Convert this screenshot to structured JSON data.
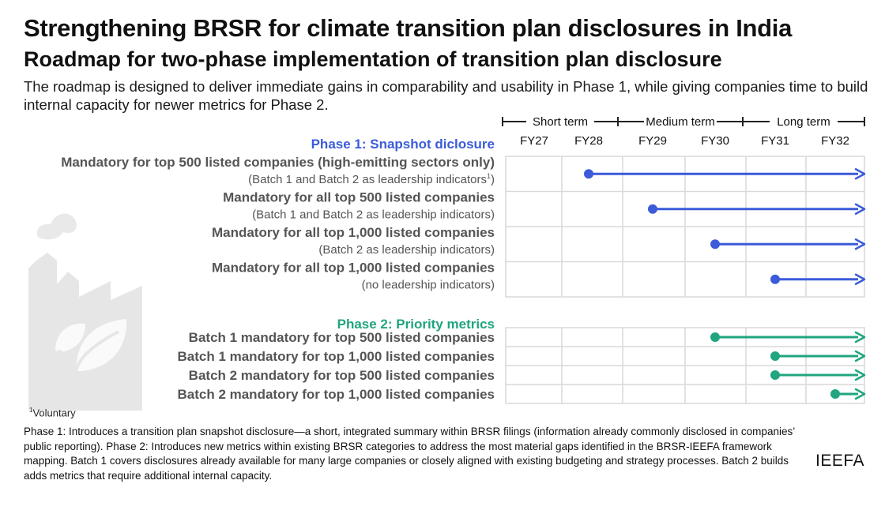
{
  "title": "Strengthening BRSR for climate transition plan disclosures in India",
  "subtitle": "Roadmap for two-phase implementation of transition plan disclosure",
  "intro": "The roadmap is designed to deliver immediate gains in comparability and usability in Phase 1, while giving companies time to build internal capacity for newer metrics for Phase 2.",
  "footnote": {
    "marker": "1",
    "text": "Voluntary"
  },
  "notes": "Phase 1: Introduces a transition plan snapshot disclosure—a short, integrated summary within BRSR filings (information already commonly disclosed in companies’ public reporting). Phase 2: Introduces new metrics within existing BRSR categories to address the most material gaps identified in the BRSR-IEEFA framework mapping. Batch 1 covers disclosures already available for many large companies or closely aligned with existing budgeting and strategy processes. Batch 2 builds adds metrics that require additional internal capacity.",
  "brand": "IEEFA",
  "colors": {
    "phase1": "#3b5bd9",
    "phase2": "#1fa57f",
    "grid": "#d9d9d9",
    "label": "#555555",
    "icon": "#e9e9e9"
  },
  "icon": "factory-leaf-icon",
  "chart_data": {
    "type": "gantt",
    "categories": [
      "FY27",
      "FY28",
      "FY29",
      "FY30",
      "FY31",
      "FY32"
    ],
    "term_bands": [
      {
        "label": "Short term",
        "from": "FY27",
        "to": "FY28"
      },
      {
        "label": "Medium term",
        "from": "FY29",
        "to": "FY30"
      },
      {
        "label": "Long term",
        "from": "FY31",
        "to": "FY32"
      }
    ],
    "phases": [
      {
        "title": "Phase 1: Snapshot diclosure",
        "color": "#3b5bd9",
        "items": [
          {
            "label": "Mandatory for top 500 listed companies (high-emitting sectors only)",
            "sublabel": "(Batch 1 and Batch 2 as leadership indicators",
            "sublabel_sup": "1",
            "sublabel_end": ")",
            "start": "FY28",
            "ongoing": true
          },
          {
            "label": "Mandatory for all top 500 listed companies",
            "sublabel": "(Batch 1 and Batch 2 as leadership indicators)",
            "start": "FY29",
            "ongoing": true
          },
          {
            "label": "Mandatory for all top 1,000 listed companies",
            "sublabel": "(Batch 2 as leadership indicators)",
            "start": "FY30",
            "ongoing": true
          },
          {
            "label": "Mandatory for all top 1,000 listed companies",
            "sublabel": "(no leadership indicators)",
            "start": "FY31",
            "ongoing": true
          }
        ]
      },
      {
        "title": "Phase 2: Priority metrics",
        "color": "#1fa57f",
        "items": [
          {
            "label": "Batch 1 mandatory for top 500 listed companies",
            "start": "FY30",
            "ongoing": true
          },
          {
            "label": "Batch 1 mandatory for top 1,000 listed companies",
            "start": "FY31",
            "ongoing": true
          },
          {
            "label": "Batch 2 mandatory for top 500 listed companies",
            "start": "FY31",
            "ongoing": true
          },
          {
            "label": "Batch 2 mandatory for top 1,000 listed companies",
            "start": "FY32",
            "ongoing": true
          }
        ]
      }
    ]
  }
}
